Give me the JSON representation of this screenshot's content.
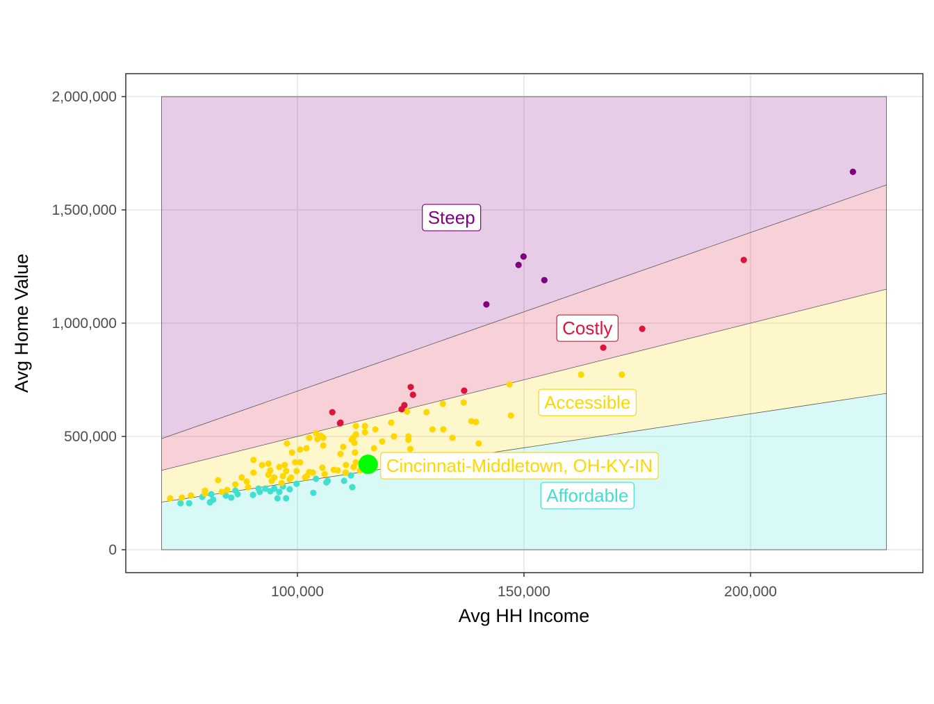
{
  "chart_data": {
    "type": "scatter",
    "title": "",
    "xlabel": "Avg HH Income",
    "ylabel": "Avg Home Value",
    "xlim": [
      64000,
      240000
    ],
    "ylim": [
      -100000,
      2100000
    ],
    "x_ticks": [
      100000,
      150000,
      200000
    ],
    "x_tick_labels": [
      "100,000",
      "150,000",
      "200,000"
    ],
    "y_ticks": [
      0,
      500000,
      1000000,
      1500000,
      2000000
    ],
    "y_tick_labels": [
      "0",
      "500,000",
      "1,000,000",
      "1,500,000",
      "2,000,000"
    ],
    "grid": true,
    "zones": {
      "x_range": [
        70000,
        230000
      ],
      "y_max": 2000000,
      "boundary_multipliers": [
        3,
        5,
        7
      ],
      "bands": [
        {
          "label": "Affordable",
          "lower_multiplier": 0,
          "upper_multiplier": 3,
          "color": "#40E0D0",
          "label_at": [
            164000,
            239000
          ]
        },
        {
          "label": "Accessible",
          "lower_multiplier": 3,
          "upper_multiplier": 5,
          "color": "#FFD700",
          "label_at": [
            164000,
            650000
          ]
        },
        {
          "label": "Costly",
          "lower_multiplier": 5,
          "upper_multiplier": 7,
          "color": "#DC143C",
          "label_at": [
            164000,
            978000
          ]
        },
        {
          "label": "Steep",
          "lower_multiplier": 7,
          "upper_multiplier": null,
          "color": "#800080",
          "label_at": [
            134000,
            1466000
          ]
        }
      ]
    },
    "series": [
      {
        "category": "Affordable",
        "color": "#40E0D0",
        "points": [
          [
            74200,
            205000
          ],
          [
            76100,
            205000
          ],
          [
            79000,
            233000
          ],
          [
            81000,
            245000
          ],
          [
            80700,
            209000
          ],
          [
            81400,
            221000
          ],
          [
            84200,
            239000
          ],
          [
            85400,
            230000
          ],
          [
            86300,
            261000
          ],
          [
            86800,
            245000
          ],
          [
            90200,
            242000
          ],
          [
            91400,
            270000
          ],
          [
            91700,
            255000
          ],
          [
            92900,
            270000
          ],
          [
            94000,
            258000
          ],
          [
            94900,
            270000
          ],
          [
            95600,
            227000
          ],
          [
            96000,
            255000
          ],
          [
            96800,
            279000
          ],
          [
            97500,
            227000
          ],
          [
            98300,
            267000
          ],
          [
            99800,
            291000
          ],
          [
            103500,
            251000
          ],
          [
            104100,
            313000
          ],
          [
            106400,
            297000
          ],
          [
            106700,
            304000
          ],
          [
            110300,
            304000
          ],
          [
            111800,
            328000
          ],
          [
            112100,
            276000
          ]
        ]
      },
      {
        "category": "Accessible",
        "color": "#FFD700",
        "points": [
          [
            71900,
            227000
          ],
          [
            74500,
            230000
          ],
          [
            76500,
            239000
          ],
          [
            79600,
            261000
          ],
          [
            79600,
            248000
          ],
          [
            82500,
            307000
          ],
          [
            83300,
            255000
          ],
          [
            84500,
            264000
          ],
          [
            86300,
            288000
          ],
          [
            87700,
            319000
          ],
          [
            88800,
            301000
          ],
          [
            89100,
            276000
          ],
          [
            90300,
            396000
          ],
          [
            90300,
            340000
          ],
          [
            92200,
            374000
          ],
          [
            93600,
            380000
          ],
          [
            94000,
            350000
          ],
          [
            93600,
            331000
          ],
          [
            94300,
            304000
          ],
          [
            96000,
            365000
          ],
          [
            97200,
            374000
          ],
          [
            96800,
            325000
          ],
          [
            97500,
            347000
          ],
          [
            98600,
            319000
          ],
          [
            99500,
            386000
          ],
          [
            100600,
            386000
          ],
          [
            99800,
            347000
          ],
          [
            100600,
            442000
          ],
          [
            102000,
            448000
          ],
          [
            97700,
            469000
          ],
          [
            98800,
            429000
          ],
          [
            101700,
            319000
          ],
          [
            102600,
            343000
          ],
          [
            103400,
            340000
          ],
          [
            102600,
            494000
          ],
          [
            104100,
            515000
          ],
          [
            105200,
            503000
          ],
          [
            104400,
            488000
          ],
          [
            105700,
            494000
          ],
          [
            105700,
            460000
          ],
          [
            105500,
            362000
          ],
          [
            106000,
            334000
          ],
          [
            108000,
            353000
          ],
          [
            108900,
            350000
          ],
          [
            109500,
            423000
          ],
          [
            110100,
            454000
          ],
          [
            110700,
            374000
          ],
          [
            110700,
            340000
          ],
          [
            112400,
            365000
          ],
          [
            112700,
            429000
          ],
          [
            112900,
            546000
          ],
          [
            112900,
            509000
          ],
          [
            112000,
            485000
          ],
          [
            112600,
            472000
          ],
          [
            114900,
            546000
          ],
          [
            114900,
            518000
          ],
          [
            117200,
            531000
          ],
          [
            116900,
            448000
          ],
          [
            118700,
            478000
          ],
          [
            94900,
            319000
          ],
          [
            96500,
            294000
          ],
          [
            98300,
            310000
          ],
          [
            146800,
            730000
          ],
          [
            132100,
            644000
          ],
          [
            136700,
            650000
          ],
          [
            128500,
            607000
          ],
          [
            124200,
            610000
          ],
          [
            147100,
            592000
          ],
          [
            138400,
            567000
          ],
          [
            139400,
            564000
          ],
          [
            120700,
            561000
          ],
          [
            129800,
            531000
          ],
          [
            132200,
            531000
          ],
          [
            134200,
            494000
          ],
          [
            140000,
            469000
          ],
          [
            121300,
            500000
          ],
          [
            124500,
            500000
          ],
          [
            124500,
            485000
          ],
          [
            112300,
            494000
          ],
          [
            124900,
            445000
          ],
          [
            112900,
            386000
          ],
          [
            102100,
            325000
          ],
          [
            113800,
            350000
          ],
          [
            110600,
            340000
          ],
          [
            162600,
            773000
          ],
          [
            171600,
            773000
          ]
        ]
      },
      {
        "category": "Costly",
        "color": "#DC143C",
        "points": [
          [
            107700,
            607000
          ],
          [
            109400,
            558000
          ],
          [
            109500,
            561000
          ],
          [
            125000,
            718000
          ],
          [
            125500,
            684000
          ],
          [
            123600,
            638000
          ],
          [
            123000,
            620000
          ],
          [
            136800,
            702000
          ],
          [
            167500,
            892000
          ],
          [
            176100,
            975000
          ],
          [
            198500,
            1279000
          ]
        ]
      },
      {
        "category": "Steep",
        "color": "#800080",
        "points": [
          [
            141700,
            1083000
          ],
          [
            148800,
            1257000
          ],
          [
            149900,
            1294000
          ],
          [
            154500,
            1190000
          ],
          [
            222600,
            1668000
          ]
        ]
      }
    ],
    "highlight": {
      "label": "Cincinnati-Middletown, OH-KY-IN",
      "point": [
        115600,
        377000
      ],
      "color": "#00FF00",
      "label_color": "#FFD700"
    }
  }
}
